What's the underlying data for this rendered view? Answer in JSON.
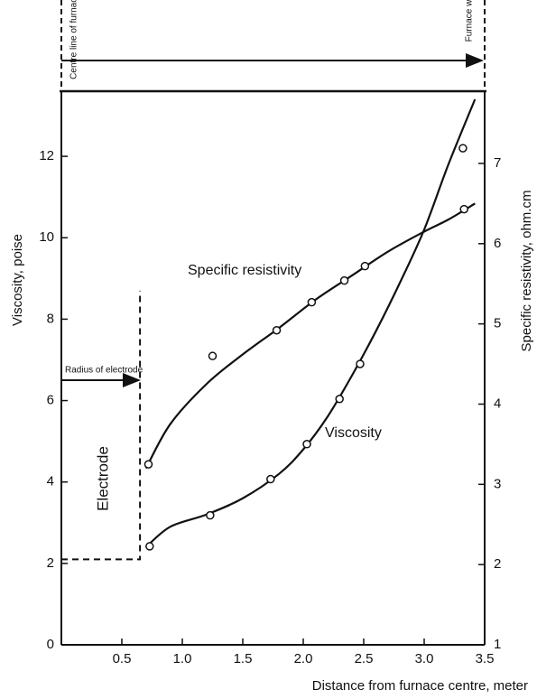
{
  "chart_data": {
    "type": "line",
    "x_label": "Distance from furnace centre, meter",
    "y_label": "Viscosity, poise",
    "y2_label": "Specific resistivity, ohm.cm",
    "xlim": [
      0,
      3.5
    ],
    "xticks": [
      0.5,
      {
        "value": 1,
        "label": "1.0"
      },
      1.5,
      {
        "value": 2,
        "label": "2.0"
      },
      2.5,
      {
        "value": 3,
        "label": "3.0"
      },
      3.5
    ],
    "ylim": [
      0,
      13.6
    ],
    "yticks": [
      0,
      2,
      4,
      6,
      8,
      10,
      12
    ],
    "y2lim": [
      1,
      7.9
    ],
    "y2ticks": [
      1,
      2,
      3,
      4,
      5,
      6,
      7
    ],
    "series": [
      {
        "name": "Viscosity",
        "style": "line",
        "color": "#111",
        "axis": "y",
        "x": [
          0.7,
          0.9,
          1.2,
          1.5,
          1.8,
          2.0,
          2.2,
          2.4,
          2.6,
          2.8,
          3.0,
          3.2,
          3.42
        ],
        "values": [
          2.4,
          2.9,
          3.2,
          3.6,
          4.2,
          4.8,
          5.6,
          6.6,
          7.7,
          8.9,
          10.2,
          11.8,
          13.4
        ]
      },
      {
        "name": "Specific resistivity",
        "style": "line",
        "color": "#111",
        "axis": "y2",
        "x": [
          0.7,
          0.9,
          1.2,
          1.5,
          1.8,
          2.1,
          2.4,
          2.7,
          3.0,
          3.2,
          3.42
        ],
        "values": [
          3.2,
          3.75,
          4.25,
          4.62,
          4.95,
          5.3,
          5.6,
          5.9,
          6.15,
          6.3,
          6.5
        ]
      },
      {
        "style": "markers",
        "color": "#111",
        "axis": "y",
        "x": [
          0.73,
          1.23,
          1.73,
          2.03,
          2.3,
          2.47,
          3.32
        ],
        "values": [
          2.42,
          3.18,
          4.07,
          4.93,
          6.04,
          6.9,
          12.2
        ]
      },
      {
        "style": "markers",
        "color": "#111",
        "axis": "y2",
        "x": [
          0.72,
          1.25,
          1.78,
          2.07,
          2.34,
          2.51,
          3.33
        ],
        "values": [
          3.25,
          4.6,
          4.92,
          5.27,
          5.54,
          5.72,
          6.43
        ]
      }
    ],
    "electrode_boundary": {
      "x": [
        0,
        0.65,
        0.65
      ],
      "values": [
        2.1,
        2.1,
        8.7
      ]
    },
    "annotations": {
      "centre_line": "Centre line of furnace",
      "furnace_wall": "Furnace wall",
      "radius": "Radius of electrode",
      "electrode": "Electrode"
    }
  }
}
